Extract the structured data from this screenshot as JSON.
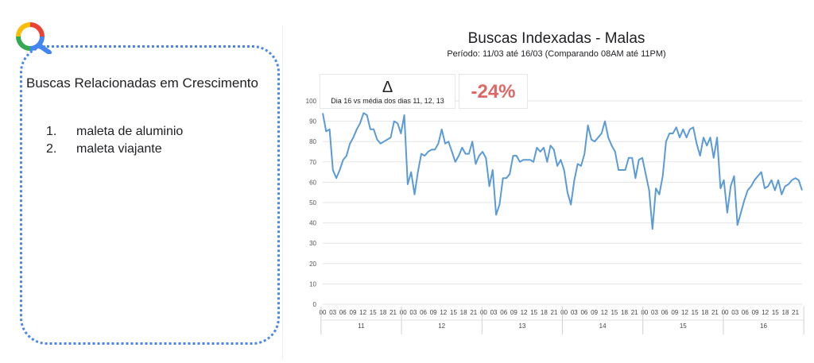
{
  "colors": {
    "accent_blue": "#4a86e8",
    "line": "#5b9bd5",
    "negative": "#e06666"
  },
  "logo": {
    "icon": "search-lens-logo-icon"
  },
  "related": {
    "title": "Buscas Relacionadas em Crescimento",
    "items": [
      {
        "num": "1.",
        "label": "maleta de aluminio"
      },
      {
        "num": "2.",
        "label": "maleta viajante"
      }
    ]
  },
  "header": {
    "title": "Buscas Indexadas - Malas",
    "subtitle": "Período: 11/03 até 16/03 (Comparando 08AM até 11PM)"
  },
  "kpi": {
    "delta_symbol": "Δ",
    "delta_note": "Dia 16 vs média dos dias 11, 12, 13",
    "value": "-24%"
  },
  "chart_data": {
    "type": "line",
    "title": "Buscas Indexadas - Malas",
    "xlabel": "",
    "ylabel": "",
    "ylim": [
      0,
      100
    ],
    "yticks": [
      0,
      10,
      20,
      30,
      40,
      50,
      60,
      70,
      80,
      90,
      100
    ],
    "grid": true,
    "legend": "none",
    "days": [
      "11",
      "12",
      "13",
      "14",
      "15",
      "16"
    ],
    "hour_ticks": [
      "00",
      "03",
      "06",
      "09",
      "12",
      "15",
      "18",
      "21"
    ],
    "series": [
      {
        "values": [
          94,
          85,
          86,
          66,
          62,
          66,
          71,
          73,
          79,
          82,
          86,
          89,
          94,
          93,
          86,
          86,
          81,
          79,
          80,
          81,
          82,
          90,
          89,
          84,
          93,
          59,
          65,
          54,
          65,
          74,
          73,
          75,
          76,
          76,
          79,
          86,
          79,
          80,
          75,
          70,
          73,
          77,
          74,
          74,
          80,
          69,
          73,
          75,
          72,
          58,
          66,
          44,
          49,
          62,
          62,
          64,
          73,
          73,
          70,
          71,
          71,
          71,
          70,
          77,
          75,
          77,
          70,
          78,
          76,
          68,
          71,
          66,
          55,
          49,
          61,
          69,
          68,
          74,
          88,
          81,
          80,
          82,
          84,
          90,
          82,
          78,
          75,
          66,
          66,
          66,
          72,
          72,
          62,
          71,
          72,
          64,
          56,
          37,
          57,
          54,
          63,
          80,
          84,
          84,
          87,
          82,
          86,
          82,
          86,
          87,
          79,
          73,
          82,
          78,
          82,
          72,
          82,
          57,
          61,
          45,
          58,
          63,
          39,
          45,
          51,
          56,
          58,
          61,
          63,
          65,
          57,
          58,
          61,
          56,
          61,
          54,
          58,
          59,
          61,
          62,
          61,
          56
        ]
      }
    ]
  }
}
